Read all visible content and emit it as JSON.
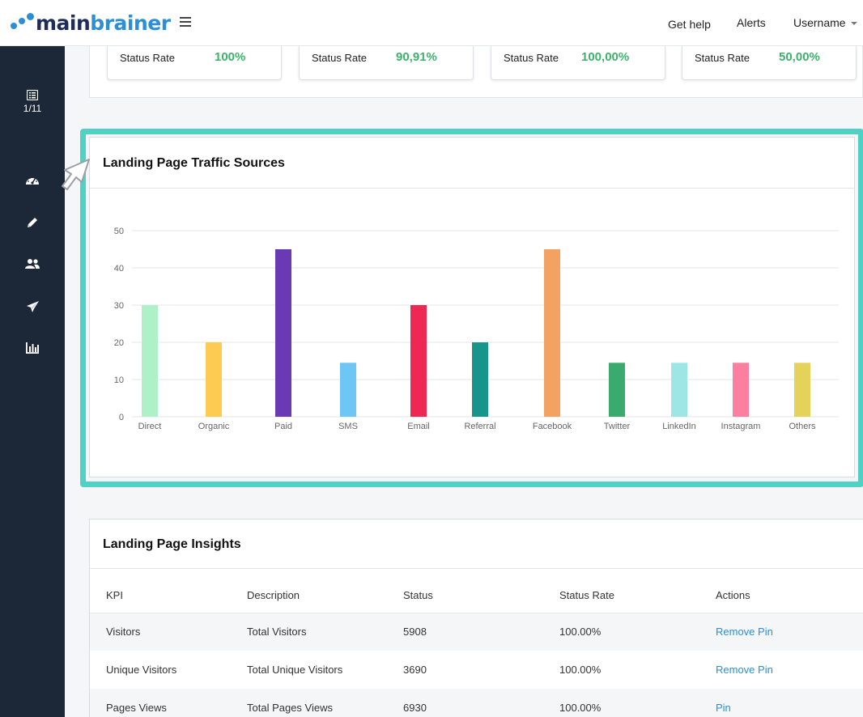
{
  "brand": {
    "name_part1": "main",
    "name_part2": "brainer"
  },
  "topnav": {
    "help": "Get help",
    "alerts": "Alerts",
    "user": "Username"
  },
  "sidebar": {
    "pager": "1/11"
  },
  "stats": [
    {
      "label": "Status Rate",
      "value": "100%"
    },
    {
      "label": "Status Rate",
      "value": "90,91%"
    },
    {
      "label": "Status Rate",
      "value": "100,00%"
    },
    {
      "label": "Status Rate",
      "value": "50,00%"
    }
  ],
  "traffic": {
    "title": "Landing Page Traffic Sources"
  },
  "chart_data": {
    "type": "bar",
    "categories": [
      "Direct",
      "Organic",
      "Paid",
      "SMS",
      "Email",
      "Referral",
      "Facebook",
      "Twitter",
      "LinkedIn",
      "Instagram",
      "Others"
    ],
    "values": [
      30,
      20,
      45,
      14.5,
      30,
      20,
      45,
      14.5,
      14.5,
      14.5,
      14.5
    ],
    "colors": [
      "#aef0c8",
      "#fecb52",
      "#6a3ab5",
      "#6ec6f5",
      "#ef2753",
      "#16968a",
      "#f4a261",
      "#3aaa6e",
      "#9ee6e6",
      "#fb7fa0",
      "#e3d35a"
    ],
    "yticks": [
      0,
      10,
      20,
      30,
      40,
      50
    ],
    "ylim": [
      0,
      50
    ],
    "grid": true,
    "title": "",
    "xlabel": "",
    "ylabel": ""
  },
  "insights": {
    "title": "Landing Page Insights",
    "headers": [
      "KPI",
      "Description",
      "Status",
      "Status Rate",
      "Actions"
    ],
    "rows": [
      [
        "Visitors",
        "Total Visitors",
        "5908",
        "100.00%",
        "Remove Pin"
      ],
      [
        "Unique Visitors",
        "Total Unique Visitors",
        "3690",
        "100.00%",
        "Remove Pin"
      ],
      [
        "Pages Views",
        "Total Pages Views",
        "6930",
        "100.00%",
        "Pin"
      ]
    ]
  },
  "colors": {
    "accent": "#4fd1c5",
    "sidebar": "#1c2838",
    "success": "#3bb36a",
    "link": "#2a8fd8"
  }
}
